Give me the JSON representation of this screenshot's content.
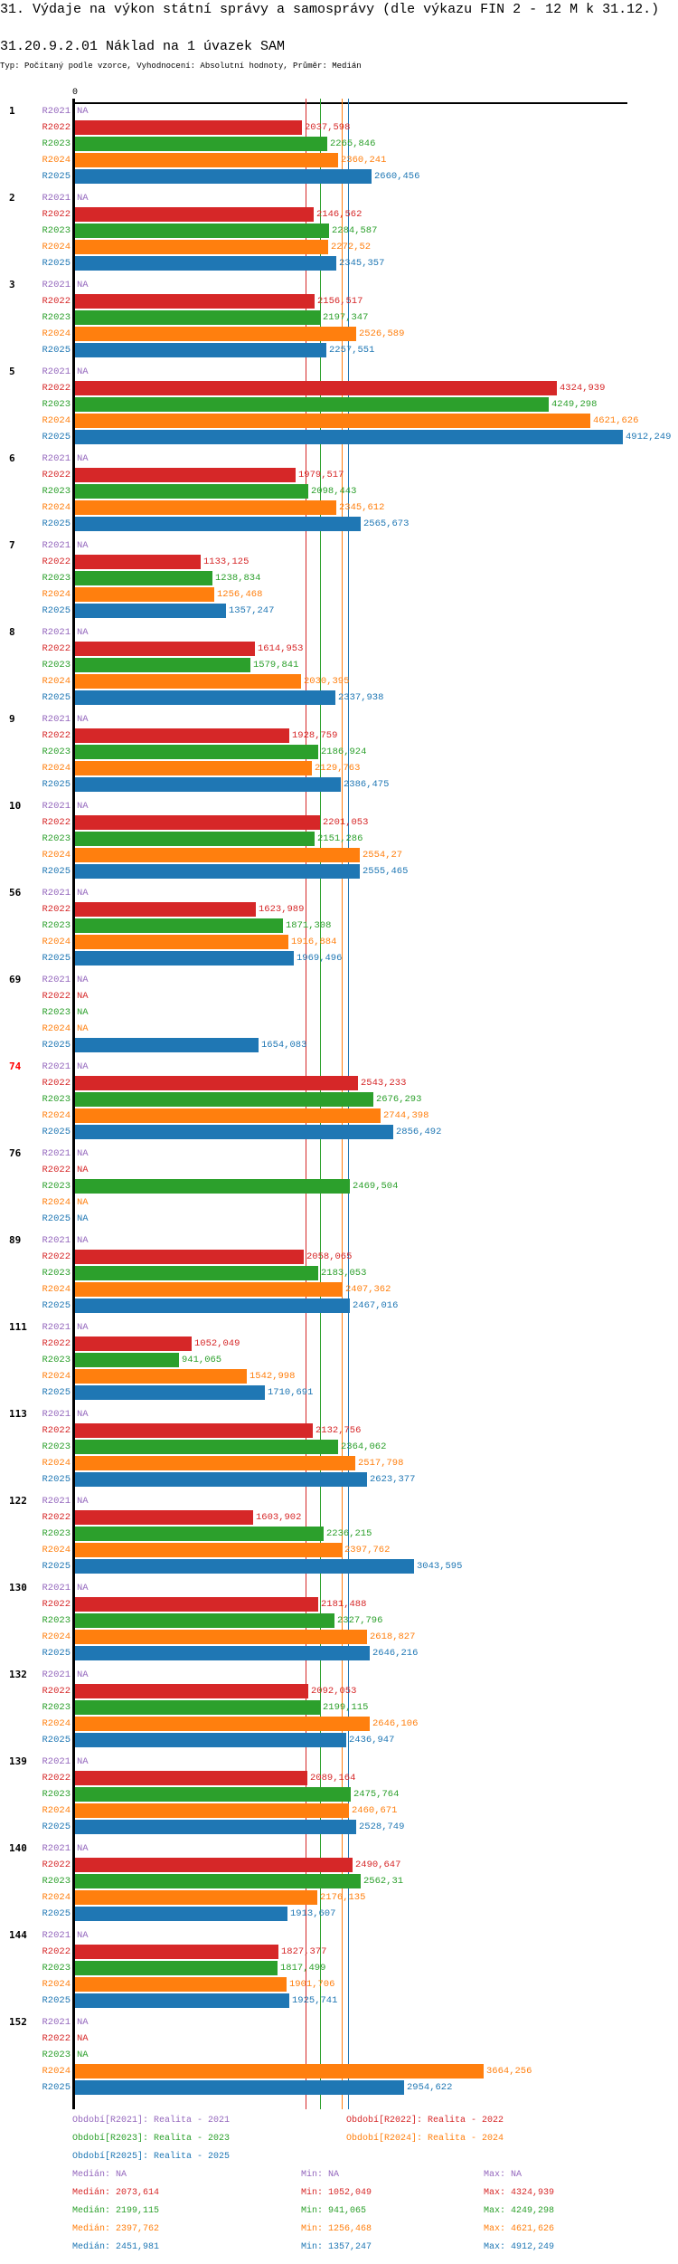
{
  "header": {
    "title": "31. Výdaje na výkon státní správy a samosprávy (dle výkazu FIN 2 - 12 M k 31.12.)",
    "subtitle": "31.20.9.2.01 Náklad na 1 úvazek SAM",
    "typ": "Typ: Počítaný podle vzorce, Vyhodnocení: Absolutní hodnoty, Průměr: Medián"
  },
  "chart_data": {
    "type": "bar",
    "orientation": "horizontal",
    "title": "31.20.9.2.01 Náklad na 1 úvazek SAM",
    "x_axis_zero_label": "0",
    "xlim": [
      0,
      4912.249
    ],
    "periods": [
      "R2021",
      "R2022",
      "R2023",
      "R2024",
      "R2025"
    ],
    "colors": {
      "R2021": "#9467bd",
      "R2022": "#d62728",
      "R2023": "#2ca02c",
      "R2024": "#ff7f0e",
      "R2025": "#1f77b4"
    },
    "highlight_group_color": "#ff0000",
    "groups": [
      {
        "id": "1",
        "values": [
          "NA",
          "2037,598",
          "2265,846",
          "2360,241",
          "2660,456"
        ]
      },
      {
        "id": "2",
        "values": [
          "NA",
          "2146,562",
          "2284,587",
          "2272,52",
          "2345,357"
        ]
      },
      {
        "id": "3",
        "values": [
          "NA",
          "2156,517",
          "2197,347",
          "2526,589",
          "2257,551"
        ]
      },
      {
        "id": "5",
        "values": [
          "NA",
          "4324,939",
          "4249,298",
          "4621,626",
          "4912,249"
        ]
      },
      {
        "id": "6",
        "values": [
          "NA",
          "1979,517",
          "2098,443",
          "2345,612",
          "2565,673"
        ]
      },
      {
        "id": "7",
        "values": [
          "NA",
          "1133,125",
          "1238,834",
          "1256,468",
          "1357,247"
        ]
      },
      {
        "id": "8",
        "values": [
          "NA",
          "1614,953",
          "1579,841",
          "2030,395",
          "2337,938"
        ]
      },
      {
        "id": "9",
        "values": [
          "NA",
          "1928,759",
          "2186,924",
          "2129,763",
          "2386,475"
        ]
      },
      {
        "id": "10",
        "values": [
          "NA",
          "2201,053",
          "2151,286",
          "2554,27",
          "2555,465"
        ]
      },
      {
        "id": "56",
        "values": [
          "NA",
          "1623,989",
          "1871,308",
          "1916,884",
          "1969,496"
        ]
      },
      {
        "id": "69",
        "values": [
          "NA",
          "NA",
          "NA",
          "NA",
          "1654,083"
        ]
      },
      {
        "id": "74",
        "highlight": true,
        "values": [
          "NA",
          "2543,233",
          "2676,293",
          "2744,398",
          "2856,492"
        ]
      },
      {
        "id": "76",
        "values": [
          "NA",
          "NA",
          "2469,504",
          "NA",
          "NA"
        ]
      },
      {
        "id": "89",
        "values": [
          "NA",
          "2058,065",
          "2183,053",
          "2407,362",
          "2467,016"
        ]
      },
      {
        "id": "111",
        "values": [
          "NA",
          "1052,049",
          "941,065",
          "1542,998",
          "1710,691"
        ]
      },
      {
        "id": "113",
        "values": [
          "NA",
          "2132,756",
          "2364,062",
          "2517,798",
          "2623,377"
        ]
      },
      {
        "id": "122",
        "values": [
          "NA",
          "1603,902",
          "2236,215",
          "2397,762",
          "3043,595"
        ]
      },
      {
        "id": "130",
        "values": [
          "NA",
          "2181,488",
          "2327,796",
          "2618,827",
          "2646,216"
        ]
      },
      {
        "id": "132",
        "values": [
          "NA",
          "2092,053",
          "2199,115",
          "2646,106",
          "2436,947"
        ]
      },
      {
        "id": "139",
        "values": [
          "NA",
          "2089,164",
          "2475,764",
          "2460,671",
          "2528,749"
        ]
      },
      {
        "id": "140",
        "values": [
          "NA",
          "2490,647",
          "2562,31",
          "2176,135",
          "1913,607"
        ]
      },
      {
        "id": "144",
        "values": [
          "NA",
          "1827,377",
          "1817,499",
          "1901,706",
          "1925,741"
        ]
      },
      {
        "id": "152",
        "values": [
          "NA",
          "NA",
          "NA",
          "3664,256",
          "2954,622"
        ]
      }
    ],
    "median_lines": [
      {
        "period": "R2022",
        "value": 2073.614
      },
      {
        "period": "R2023",
        "value": 2199.115
      },
      {
        "period": "R2024",
        "value": 2397.762
      },
      {
        "period": "R2025",
        "value": 2451.981
      }
    ],
    "legend": [
      "Období[R2021]: Realita - 2021",
      "Období[R2022]: Realita - 2022",
      "Období[R2023]: Realita - 2023",
      "Období[R2024]: Realita - 2024",
      "Období[R2025]: Realita - 2025"
    ],
    "stats": [
      {
        "median": "Medián: NA",
        "min": "Min: NA",
        "max": "Max: NA"
      },
      {
        "median": "Medián: 2073,614",
        "min": "Min: 1052,049",
        "max": "Max: 4324,939"
      },
      {
        "median": "Medián: 2199,115",
        "min": "Min: 941,065",
        "max": "Max: 4249,298"
      },
      {
        "median": "Medián: 2397,762",
        "min": "Min: 1256,468",
        "max": "Max: 4621,626"
      },
      {
        "median": "Medián: 2451,981",
        "min": "Min: 1357,247",
        "max": "Max: 4912,249"
      }
    ]
  }
}
